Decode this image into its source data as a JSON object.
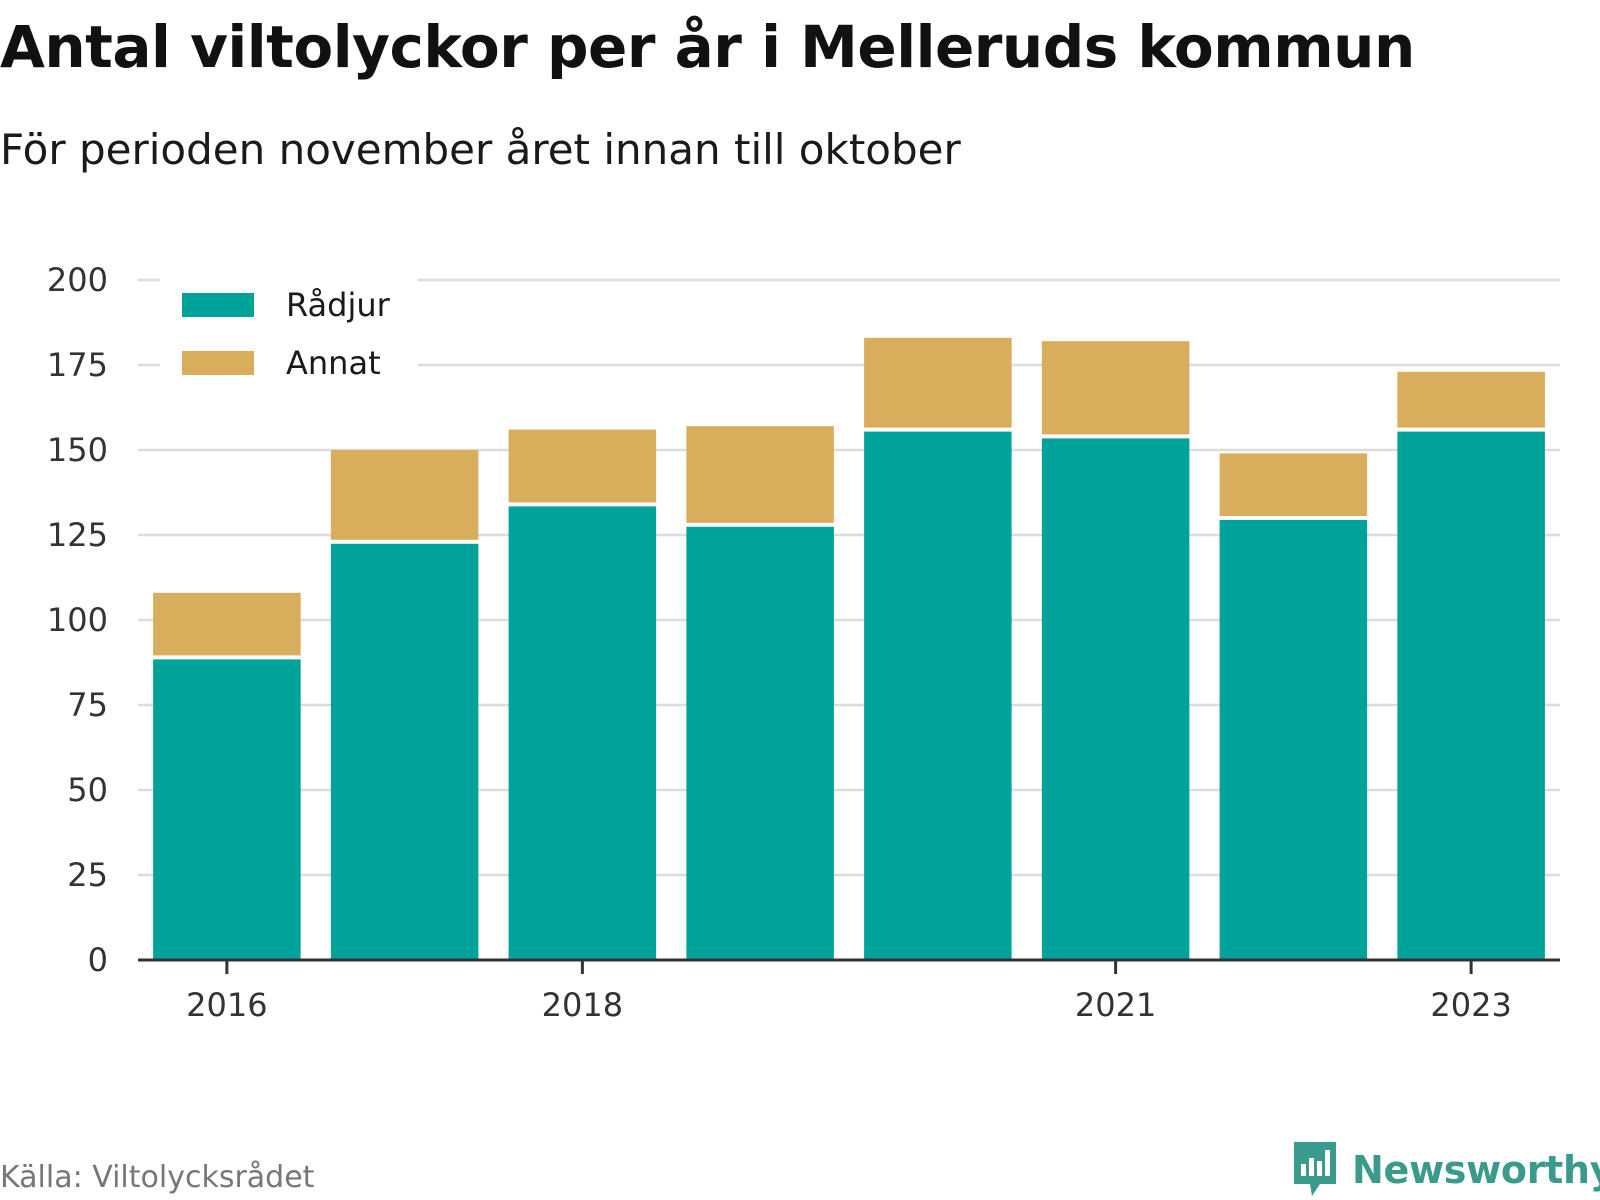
{
  "title": "Antal viltolyckor per år i Melleruds kommun",
  "subtitle": "För perioden november året innan till oktober",
  "source": "Källa: Viltolycksrådet",
  "brand": {
    "name": "Newsworthy",
    "icon": "newsworthy-logo-icon",
    "color": "#3a9a8c"
  },
  "colors": {
    "radjur": "#00a39a",
    "annat": "#d8ad5b",
    "grid": "#dddddd",
    "axis": "#333333"
  },
  "chart_data": {
    "type": "bar",
    "stacked": true,
    "x": [
      2016,
      2017,
      2018,
      2019,
      2020,
      2021,
      2022,
      2023
    ],
    "x_tick_labels": [
      "2016",
      "2018",
      "2021",
      "2023"
    ],
    "series": [
      {
        "name": "Rådjur",
        "color": "#00a39a",
        "values": [
          89,
          123,
          134,
          128,
          156,
          154,
          130,
          156
        ]
      },
      {
        "name": "Annat",
        "color": "#d8ad5b",
        "values": [
          19,
          27,
          22,
          29,
          27,
          28,
          19,
          17
        ]
      }
    ],
    "y_ticks": [
      0,
      25,
      50,
      75,
      100,
      125,
      150,
      175,
      200
    ],
    "ylim": [
      0,
      200
    ],
    "grid": true,
    "legend_position": "top-left",
    "xlabel": "",
    "ylabel": ""
  }
}
